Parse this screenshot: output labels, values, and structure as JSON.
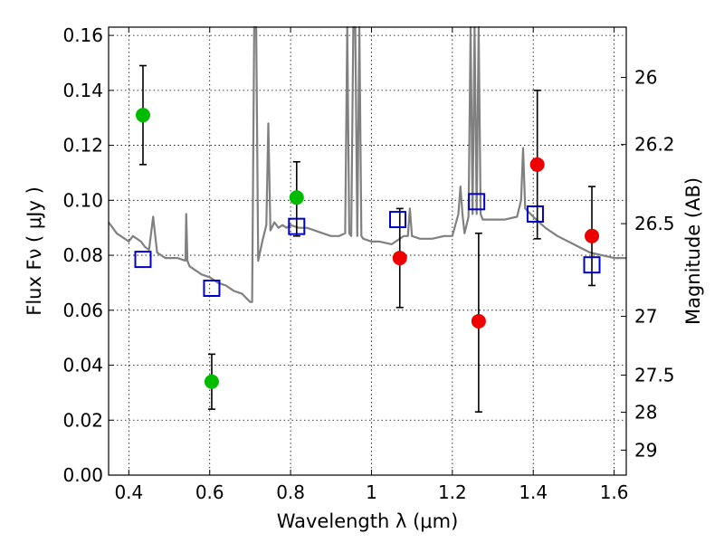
{
  "chart_data": {
    "type": "scatter",
    "xlabel": "Wavelength  λ (μm)",
    "ylabel": "Flux  Fν ( μJy )",
    "ylabel_right": "Magnitude (AB)",
    "xlim": [
      0.35,
      1.63
    ],
    "ylim": [
      0.0,
      0.163
    ],
    "grid": true,
    "x_ticks": [
      0.4,
      0.6,
      0.8,
      1.0,
      1.2,
      1.4,
      1.6
    ],
    "x_tick_labels": [
      "0.4",
      "0.6",
      "0.8",
      "1",
      "1.2",
      "1.4",
      "1.6"
    ],
    "y_ticks": [
      0.0,
      0.02,
      0.04,
      0.06,
      0.08,
      0.1,
      0.12,
      0.14,
      0.16
    ],
    "y_tick_labels": [
      "0.00",
      "0.02",
      "0.04",
      "0.06",
      "0.08",
      "0.10",
      "0.12",
      "0.14",
      "0.16"
    ],
    "right_axis": {
      "labels": [
        "26",
        "26.2",
        "26.5",
        "27",
        "27.5",
        "28",
        "29"
      ],
      "y_positions": [
        0.1447,
        0.1203,
        0.0915,
        0.0578,
        0.0364,
        0.0229,
        0.0091
      ]
    },
    "series": [
      {
        "color": "#00bb00",
        "marker": "circle",
        "x": [
          0.435,
          0.605,
          0.815
        ],
        "y": [
          0.131,
          0.034,
          0.101
        ],
        "y_err_low": [
          0.113,
          0.024,
          0.087
        ],
        "y_err_high": [
          0.149,
          0.044,
          0.114
        ]
      },
      {
        "color": "#ee0000",
        "marker": "circle",
        "x": [
          1.07,
          1.265,
          1.41,
          1.545
        ],
        "y": [
          0.079,
          0.056,
          0.113,
          0.087
        ],
        "y_err_low": [
          0.061,
          0.023,
          0.086,
          0.069
        ],
        "y_err_high": [
          0.097,
          0.088,
          0.14,
          0.105
        ]
      },
      {
        "color": "#0000cc",
        "marker": "square-open",
        "x": [
          0.435,
          0.605,
          0.815,
          1.065,
          1.26,
          1.405,
          1.545
        ],
        "y": [
          0.0785,
          0.068,
          0.0905,
          0.093,
          0.0995,
          0.095,
          0.0765
        ]
      }
    ],
    "model_spectrum": {
      "color": "#808080",
      "x": [
        0.35,
        0.36,
        0.37,
        0.38,
        0.39,
        0.4,
        0.41,
        0.42,
        0.43,
        0.44,
        0.45,
        0.46,
        0.47,
        0.48,
        0.49,
        0.5,
        0.52,
        0.54,
        0.542,
        0.545,
        0.55,
        0.56,
        0.58,
        0.6,
        0.62,
        0.64,
        0.66,
        0.68,
        0.7,
        0.705,
        0.71,
        0.715,
        0.72,
        0.73,
        0.74,
        0.745,
        0.75,
        0.76,
        0.77,
        0.78,
        0.79,
        0.8,
        0.82,
        0.84,
        0.86,
        0.88,
        0.9,
        0.92,
        0.935,
        0.94,
        0.945,
        0.95,
        0.955,
        0.96,
        0.965,
        0.97,
        0.975,
        0.98,
        1.0,
        1.02,
        1.05,
        1.08,
        1.09,
        1.095,
        1.1,
        1.12,
        1.15,
        1.18,
        1.2,
        1.215,
        1.22,
        1.225,
        1.23,
        1.24,
        1.245,
        1.25,
        1.255,
        1.26,
        1.265,
        1.27,
        1.275,
        1.28,
        1.29,
        1.3,
        1.33,
        1.36,
        1.37,
        1.375,
        1.38,
        1.4,
        1.43,
        1.46,
        1.5,
        1.54,
        1.57,
        1.6,
        1.63
      ],
      "y": [
        0.092,
        0.09,
        0.088,
        0.087,
        0.086,
        0.085,
        0.087,
        0.086,
        0.085,
        0.083,
        0.082,
        0.094,
        0.081,
        0.08,
        0.079,
        0.079,
        0.079,
        0.078,
        0.095,
        0.078,
        0.076,
        0.075,
        0.073,
        0.072,
        0.07,
        0.069,
        0.067,
        0.066,
        0.063,
        0.063,
        0.163,
        0.163,
        0.078,
        0.085,
        0.091,
        0.128,
        0.089,
        0.092,
        0.09,
        0.091,
        0.09,
        0.091,
        0.09,
        0.09,
        0.089,
        0.088,
        0.087,
        0.087,
        0.088,
        0.163,
        0.088,
        0.087,
        0.163,
        0.163,
        0.087,
        0.163,
        0.087,
        0.086,
        0.085,
        0.085,
        0.084,
        0.087,
        0.087,
        0.097,
        0.087,
        0.086,
        0.086,
        0.087,
        0.087,
        0.095,
        0.105,
        0.095,
        0.088,
        0.094,
        0.163,
        0.095,
        0.163,
        0.095,
        0.163,
        0.095,
        0.093,
        0.093,
        0.093,
        0.093,
        0.093,
        0.094,
        0.1,
        0.119,
        0.097,
        0.094,
        0.09,
        0.087,
        0.084,
        0.081,
        0.08,
        0.079,
        0.079
      ]
    }
  }
}
